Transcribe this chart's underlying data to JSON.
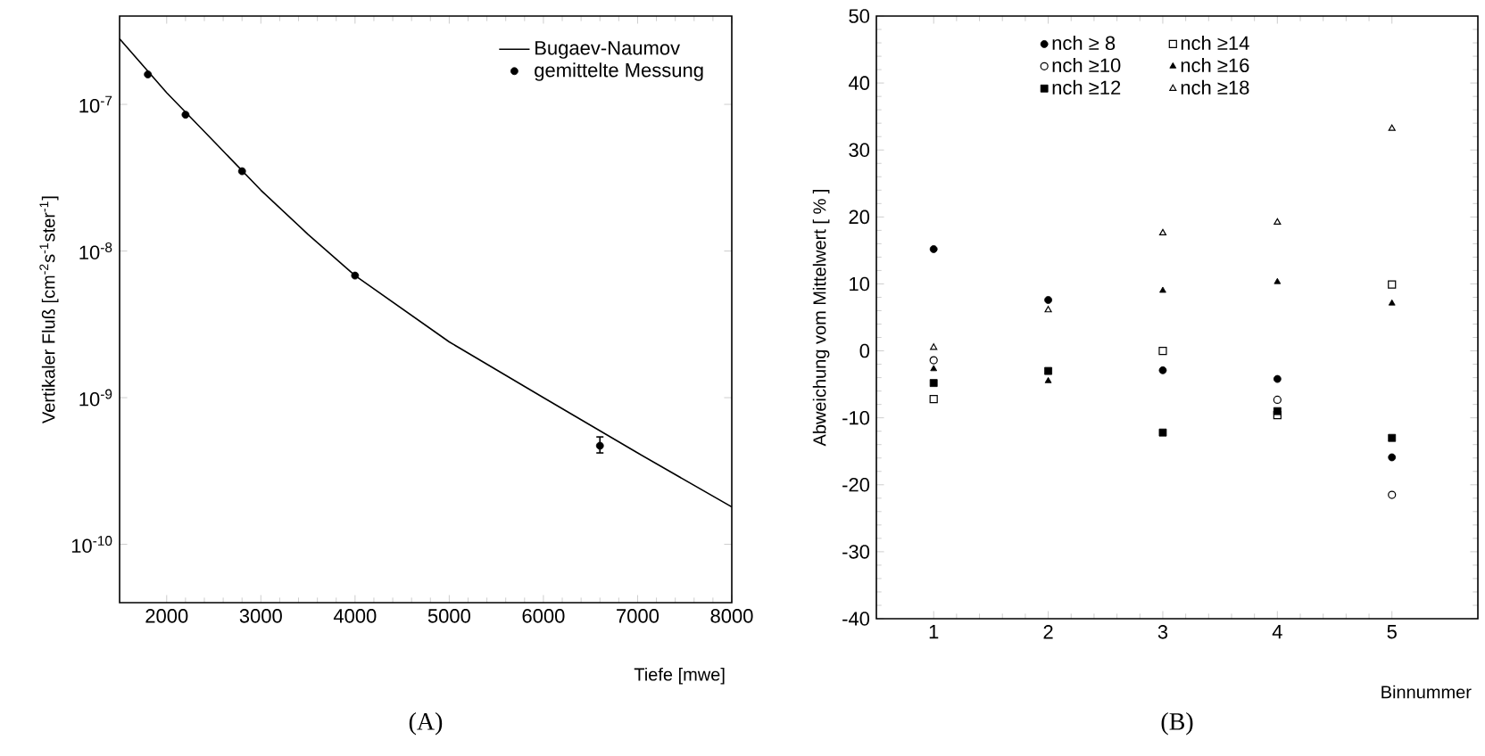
{
  "chart_data": [
    {
      "type": "line",
      "xlabel": "Tiefe [mwe]",
      "ylabel": "Vertikaler Fluß [cm$^{-2}$s$^{-1}$ster$^{-1}$]",
      "log": "y",
      "xlim": [
        1500,
        8000
      ],
      "ylim": [
        4e-11,
        4e-07
      ],
      "xticks": [
        2000,
        3000,
        4000,
        5000,
        6000,
        7000,
        8000
      ],
      "yticks": [
        {
          "value": 1e-07,
          "label": "10$^{-7}$"
        },
        {
          "value": 1e-08,
          "label": "10$^{-8}$"
        },
        {
          "value": 1e-09,
          "label": "10$^{-9}$"
        },
        {
          "value": 1e-10,
          "label": "10$^{-10}$"
        }
      ],
      "legend": "top right",
      "annotations": [
        "(A)"
      ],
      "series": [
        {
          "name": "Bugaev-Naumov",
          "type": "line",
          "color": "#000000",
          "marker": "none",
          "line_style": "solid",
          "x": [
            1500,
            2000,
            2500,
            3000,
            3500,
            4000,
            5000,
            6000,
            7000,
            8000
          ],
          "values": [
            2.8e-07,
            1.2e-07,
            5.6e-08,
            2.6e-08,
            1.3e-08,
            6.8e-09,
            2.4e-09,
            1e-09,
            4.2e-10,
            1.8e-10
          ]
        },
        {
          "name": "gemittelte Messung",
          "type": "scatter",
          "color": "#000000",
          "marker": "circle",
          "x": [
            1800,
            2200,
            2800,
            4000,
            6600
          ],
          "values": [
            1.6e-07,
            8.5e-08,
            3.5e-08,
            6.8e-09,
            4.7e-10
          ],
          "errors": [
            null,
            null,
            null,
            null,
            [
              4.2e-10,
              5.4e-10
            ]
          ]
        }
      ]
    },
    {
      "type": "scatter",
      "xlabel": "Binnummer",
      "ylabel": "Abweichung vom Mittelwert [ % ]",
      "xlim": [
        0.5,
        5.75
      ],
      "ylim": [
        -40,
        50
      ],
      "xticks": [
        1,
        2,
        3,
        4,
        5
      ],
      "yticks": [
        -40,
        -30,
        -20,
        -10,
        0,
        10,
        20,
        30,
        40,
        50
      ],
      "legend": "top",
      "annotations": [
        "(B)"
      ],
      "series": [
        {
          "name": "nch ≥ 8",
          "color": "#000000",
          "marker": "circle",
          "x": [
            1,
            2,
            3,
            4,
            5
          ],
          "values": [
            15.2,
            7.6,
            -2.9,
            -4.2,
            -15.9
          ]
        },
        {
          "name": "nch ≥10",
          "color": "#000000",
          "marker": "circle",
          "x": [
            1,
            2,
            3,
            4,
            5
          ],
          "values": [
            -1.4,
            null,
            null,
            -7.3,
            -21.5
          ]
        },
        {
          "name": "nch ≥12",
          "color": "#000000",
          "marker": "square",
          "x": [
            1,
            2,
            3,
            4,
            5
          ],
          "values": [
            -4.8,
            -3.0,
            -12.2,
            -9.0,
            -13.0
          ]
        },
        {
          "name": "nch ≥14",
          "color": "#000000",
          "marker": "square",
          "x": [
            1,
            2,
            3,
            4,
            5
          ],
          "values": [
            -7.2,
            null,
            0,
            -9.6,
            9.9
          ]
        },
        {
          "name": "nch ≥16",
          "color": "#000000",
          "marker": "triangle",
          "x": [
            1,
            2,
            3,
            4,
            5
          ],
          "values": [
            -2.7,
            -4.5,
            9.0,
            10.3,
            7.1
          ]
        },
        {
          "name": "nch ≥18",
          "color": "#000000",
          "marker": "triangle",
          "x": [
            1,
            2,
            3,
            4,
            5
          ],
          "values": [
            0.5,
            6.1,
            17.6,
            19.2,
            33.2
          ]
        }
      ]
    }
  ]
}
